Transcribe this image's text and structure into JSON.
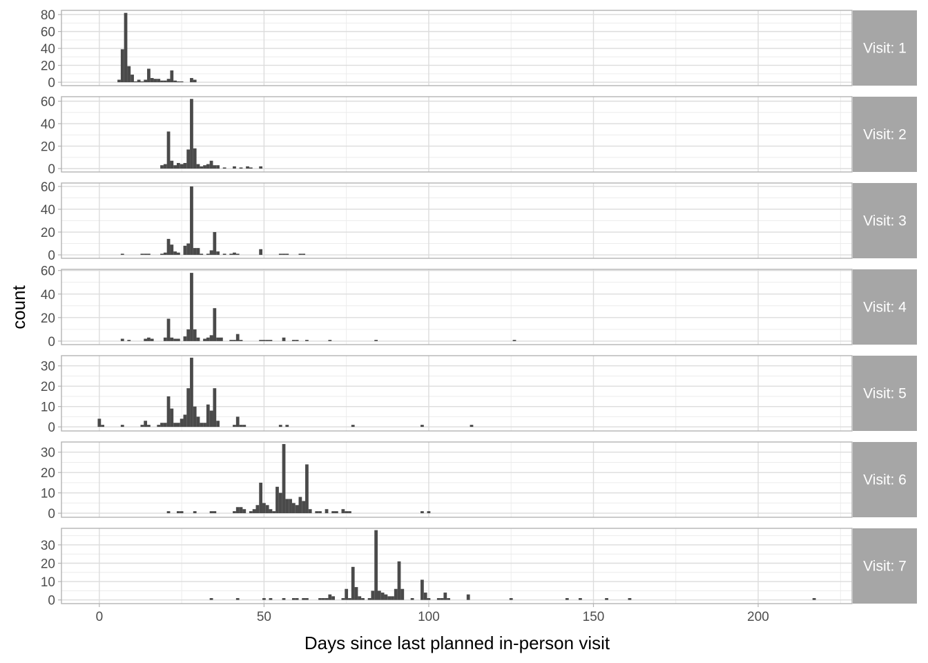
{
  "chart_data": {
    "type": "bar",
    "xlabel": "Days since last planned in-person visit",
    "ylabel": "count",
    "xlim": [
      -11.5,
      228.5
    ],
    "x_ticks": [
      0,
      50,
      100,
      150,
      200
    ],
    "binwidth": 1,
    "grid": true,
    "theme": "light",
    "colors": {
      "bar": "#4a4a4a",
      "strip": "#a6a6a6",
      "strip_text": "#ffffff",
      "border": "#b3b3b3",
      "grid_major": "#dcdcdc",
      "grid_minor": "#ececec"
    },
    "panels": [
      {
        "label": "Visit: 1",
        "ylim": [
          -4,
          85
        ],
        "y_ticks": [
          0,
          20,
          40,
          60,
          80
        ],
        "bins": [
          [
            6,
            3
          ],
          [
            7,
            39
          ],
          [
            8,
            82
          ],
          [
            9,
            19
          ],
          [
            10,
            9
          ],
          [
            11,
            1
          ],
          [
            12,
            3
          ],
          [
            13,
            1
          ],
          [
            14,
            3
          ],
          [
            15,
            16
          ],
          [
            16,
            5
          ],
          [
            17,
            4
          ],
          [
            18,
            4
          ],
          [
            19,
            2
          ],
          [
            20,
            2
          ],
          [
            21,
            4
          ],
          [
            22,
            14
          ],
          [
            23,
            2
          ],
          [
            24,
            1
          ],
          [
            25,
            1
          ],
          [
            28,
            5
          ],
          [
            29,
            3
          ]
        ]
      },
      {
        "label": "Visit: 2",
        "ylim": [
          -3,
          64
        ],
        "y_ticks": [
          0,
          20,
          40,
          60
        ],
        "bins": [
          [
            19,
            3
          ],
          [
            20,
            4
          ],
          [
            21,
            33
          ],
          [
            22,
            7
          ],
          [
            23,
            3
          ],
          [
            24,
            5
          ],
          [
            25,
            4
          ],
          [
            26,
            5
          ],
          [
            27,
            17
          ],
          [
            28,
            62
          ],
          [
            29,
            18
          ],
          [
            30,
            4
          ],
          [
            31,
            2
          ],
          [
            32,
            3
          ],
          [
            33,
            4
          ],
          [
            34,
            7
          ],
          [
            35,
            3
          ],
          [
            36,
            3
          ],
          [
            38,
            1
          ],
          [
            41,
            2
          ],
          [
            43,
            1
          ],
          [
            45,
            2
          ],
          [
            46,
            1
          ],
          [
            49,
            2
          ]
        ]
      },
      {
        "label": "Visit: 3",
        "ylim": [
          -3,
          63
        ],
        "y_ticks": [
          0,
          20,
          40,
          60
        ],
        "bins": [
          [
            7,
            1
          ],
          [
            13,
            1
          ],
          [
            14,
            1
          ],
          [
            15,
            1
          ],
          [
            19,
            1
          ],
          [
            20,
            2
          ],
          [
            21,
            14
          ],
          [
            22,
            9
          ],
          [
            23,
            3
          ],
          [
            24,
            2
          ],
          [
            26,
            8
          ],
          [
            27,
            10
          ],
          [
            28,
            60
          ],
          [
            29,
            6
          ],
          [
            30,
            6
          ],
          [
            31,
            1
          ],
          [
            33,
            1
          ],
          [
            34,
            4
          ],
          [
            35,
            20
          ],
          [
            36,
            3
          ],
          [
            38,
            1
          ],
          [
            40,
            1
          ],
          [
            41,
            2
          ],
          [
            42,
            1
          ],
          [
            49,
            5
          ],
          [
            55,
            1
          ],
          [
            56,
            1
          ],
          [
            57,
            1
          ],
          [
            61,
            1
          ],
          [
            62,
            1
          ]
        ]
      },
      {
        "label": "Visit: 4",
        "ylim": [
          -3,
          61
        ],
        "y_ticks": [
          0,
          20,
          40,
          60
        ],
        "bins": [
          [
            7,
            2
          ],
          [
            9,
            1
          ],
          [
            14,
            2
          ],
          [
            15,
            3
          ],
          [
            16,
            2
          ],
          [
            20,
            3
          ],
          [
            21,
            19
          ],
          [
            22,
            3
          ],
          [
            23,
            2
          ],
          [
            24,
            2
          ],
          [
            26,
            4
          ],
          [
            27,
            10
          ],
          [
            28,
            58
          ],
          [
            29,
            10
          ],
          [
            30,
            3
          ],
          [
            32,
            2
          ],
          [
            33,
            3
          ],
          [
            34,
            5
          ],
          [
            35,
            28
          ],
          [
            36,
            3
          ],
          [
            37,
            3
          ],
          [
            40,
            1
          ],
          [
            41,
            1
          ],
          [
            42,
            6
          ],
          [
            43,
            1
          ],
          [
            49,
            1
          ],
          [
            50,
            1
          ],
          [
            51,
            1
          ],
          [
            52,
            1
          ],
          [
            56,
            3
          ],
          [
            59,
            1
          ],
          [
            60,
            1
          ],
          [
            63,
            1
          ],
          [
            70,
            1
          ],
          [
            84,
            1
          ],
          [
            126,
            1
          ]
        ]
      },
      {
        "label": "Visit: 5",
        "ylim": [
          -2,
          35
        ],
        "y_ticks": [
          0,
          10,
          20,
          30
        ],
        "bins": [
          [
            0,
            4
          ],
          [
            1,
            1
          ],
          [
            7,
            1
          ],
          [
            13,
            1
          ],
          [
            14,
            3
          ],
          [
            15,
            1
          ],
          [
            18,
            1
          ],
          [
            19,
            2
          ],
          [
            20,
            2
          ],
          [
            21,
            15
          ],
          [
            22,
            9
          ],
          [
            23,
            2
          ],
          [
            24,
            2
          ],
          [
            25,
            4
          ],
          [
            26,
            6
          ],
          [
            27,
            19
          ],
          [
            28,
            34
          ],
          [
            29,
            10
          ],
          [
            30,
            5
          ],
          [
            31,
            2
          ],
          [
            32,
            2
          ],
          [
            33,
            11
          ],
          [
            34,
            8
          ],
          [
            35,
            19
          ],
          [
            36,
            3
          ],
          [
            41,
            1
          ],
          [
            42,
            5
          ],
          [
            43,
            1
          ],
          [
            44,
            1
          ],
          [
            55,
            1
          ],
          [
            57,
            1
          ],
          [
            77,
            1
          ],
          [
            98,
            1
          ],
          [
            113,
            1
          ]
        ]
      },
      {
        "label": "Visit: 6",
        "ylim": [
          -2,
          35
        ],
        "y_ticks": [
          0,
          10,
          20,
          30
        ],
        "bins": [
          [
            21,
            1
          ],
          [
            24,
            1
          ],
          [
            25,
            1
          ],
          [
            29,
            1
          ],
          [
            34,
            1
          ],
          [
            35,
            1
          ],
          [
            41,
            1
          ],
          [
            42,
            3
          ],
          [
            43,
            3
          ],
          [
            44,
            2
          ],
          [
            46,
            1
          ],
          [
            47,
            2
          ],
          [
            48,
            4
          ],
          [
            49,
            15
          ],
          [
            50,
            5
          ],
          [
            51,
            4
          ],
          [
            52,
            2
          ],
          [
            53,
            1
          ],
          [
            54,
            13
          ],
          [
            55,
            10
          ],
          [
            56,
            34
          ],
          [
            57,
            7
          ],
          [
            58,
            7
          ],
          [
            59,
            5
          ],
          [
            60,
            4
          ],
          [
            61,
            8
          ],
          [
            62,
            6
          ],
          [
            63,
            24
          ],
          [
            64,
            2
          ],
          [
            66,
            1
          ],
          [
            67,
            1
          ],
          [
            69,
            2
          ],
          [
            71,
            1
          ],
          [
            72,
            1
          ],
          [
            74,
            2
          ],
          [
            75,
            1
          ],
          [
            76,
            1
          ],
          [
            98,
            1
          ],
          [
            100,
            1
          ]
        ]
      },
      {
        "label": "Visit: 7",
        "ylim": [
          -2,
          39
        ],
        "y_ticks": [
          0,
          10,
          20,
          30
        ],
        "bins": [
          [
            34,
            1
          ],
          [
            42,
            1
          ],
          [
            50,
            1
          ],
          [
            52,
            1
          ],
          [
            56,
            1
          ],
          [
            59,
            1
          ],
          [
            60,
            1
          ],
          [
            62,
            1
          ],
          [
            63,
            1
          ],
          [
            67,
            1
          ],
          [
            68,
            1
          ],
          [
            69,
            1
          ],
          [
            70,
            3
          ],
          [
            71,
            2
          ],
          [
            74,
            1
          ],
          [
            75,
            6
          ],
          [
            76,
            1
          ],
          [
            77,
            18
          ],
          [
            78,
            7
          ],
          [
            79,
            2
          ],
          [
            80,
            1
          ],
          [
            82,
            1
          ],
          [
            83,
            5
          ],
          [
            84,
            38
          ],
          [
            85,
            5
          ],
          [
            86,
            4
          ],
          [
            87,
            3
          ],
          [
            88,
            2
          ],
          [
            89,
            2
          ],
          [
            90,
            6
          ],
          [
            91,
            21
          ],
          [
            92,
            6
          ],
          [
            95,
            1
          ],
          [
            98,
            11
          ],
          [
            99,
            4
          ],
          [
            100,
            1
          ],
          [
            103,
            1
          ],
          [
            104,
            1
          ],
          [
            105,
            4
          ],
          [
            106,
            1
          ],
          [
            112,
            3
          ],
          [
            125,
            1
          ],
          [
            142,
            1
          ],
          [
            146,
            1
          ],
          [
            154,
            1
          ],
          [
            161,
            1
          ],
          [
            217,
            1
          ]
        ]
      }
    ]
  }
}
